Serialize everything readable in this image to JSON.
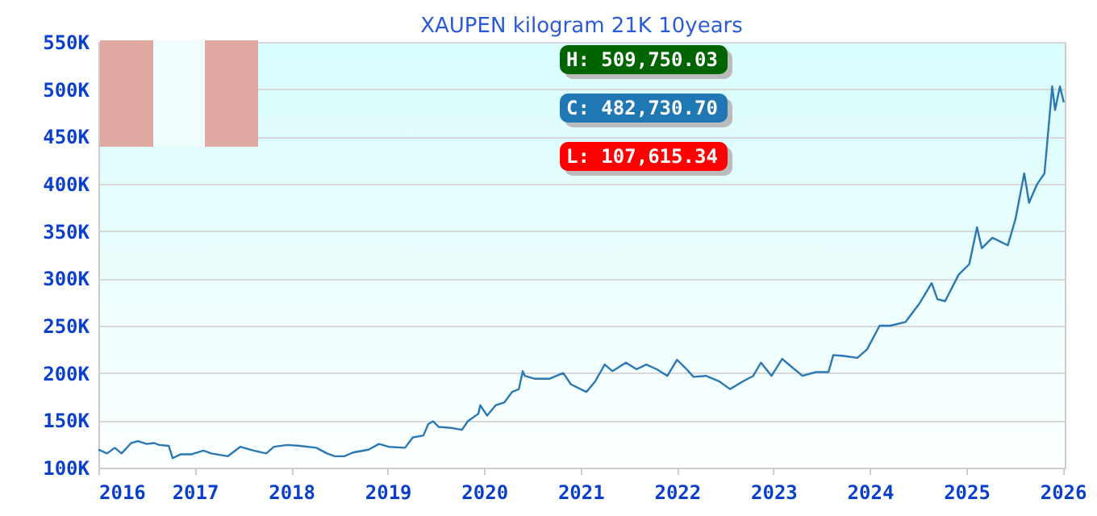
{
  "chart_data": {
    "type": "line",
    "title": "XAUPEN kilogram 21K 10years",
    "annotations": [
      "H: 509,750.03",
      "C: 482,730.70",
      "L: 107,615.34"
    ],
    "x": [
      2016.0,
      2016.09,
      2016.17,
      2016.24,
      2016.34,
      2016.41,
      2016.5,
      2016.58,
      2016.63,
      2016.73,
      2016.77,
      2016.85,
      2016.96,
      2017.09,
      2017.17,
      2017.34,
      2017.47,
      2017.61,
      2017.74,
      2017.82,
      2017.96,
      2018.09,
      2018.26,
      2018.37,
      2018.45,
      2018.55,
      2018.64,
      2018.8,
      2018.91,
      2019.01,
      2019.18,
      2019.26,
      2019.37,
      2019.42,
      2019.47,
      2019.53,
      2019.66,
      2019.77,
      2019.83,
      2019.94,
      2019.96,
      2020.03,
      2020.12,
      2020.21,
      2020.29,
      2020.36,
      2020.4,
      2020.42,
      2020.52,
      2020.68,
      2020.82,
      2020.9,
      2021.06,
      2021.15,
      2021.25,
      2021.33,
      2021.47,
      2021.58,
      2021.68,
      2021.79,
      2021.9,
      2022.0,
      2022.09,
      2022.17,
      2022.3,
      2022.44,
      2022.55,
      2022.68,
      2022.79,
      2022.87,
      2022.98,
      2023.09,
      2023.17,
      2023.3,
      2023.44,
      2023.57,
      2023.62,
      2023.73,
      2023.87,
      2023.97,
      2024.1,
      2024.21,
      2024.37,
      2024.51,
      2024.64,
      2024.7,
      2024.78,
      2024.92,
      2025.03,
      2025.11,
      2025.16,
      2025.27,
      2025.43,
      2025.51,
      2025.6,
      2025.65,
      2025.73,
      2025.81,
      2025.89,
      2025.92,
      2025.97,
      2026.01
    ],
    "series": [
      {
        "color": "#2a78b2",
        "values": [
          119000,
          115000,
          121000,
          115000,
          126000,
          128000,
          125000,
          126000,
          124000,
          123000,
          110000,
          114000,
          114000,
          118000,
          115000,
          112000,
          122000,
          118000,
          115000,
          122000,
          124000,
          123000,
          121000,
          115000,
          112000,
          112000,
          116000,
          119000,
          125000,
          122000,
          121000,
          132000,
          134000,
          146000,
          149000,
          143000,
          142000,
          140000,
          149000,
          157000,
          166000,
          155000,
          166000,
          169000,
          180000,
          183000,
          202000,
          197000,
          194000,
          194000,
          200000,
          188000,
          180000,
          191000,
          209000,
          202000,
          211000,
          204000,
          209000,
          204000,
          197000,
          214000,
          205000,
          196000,
          197000,
          191000,
          183000,
          191000,
          197000,
          211000,
          197000,
          215000,
          208000,
          197000,
          201000,
          201000,
          219000,
          218000,
          216000,
          225000,
          250000,
          250000,
          254000,
          273000,
          295000,
          278000,
          276000,
          304000,
          315000,
          354000,
          332000,
          343000,
          335000,
          363000,
          411000,
          380000,
          399000,
          411000,
          503000,
          478000,
          503000,
          486000
        ]
      }
    ],
    "xlim": [
      2016,
      2026.02
    ],
    "xticks": [
      2016,
      2017,
      2018,
      2019,
      2020,
      2021,
      2022,
      2023,
      2024,
      2025,
      2026
    ],
    "ylim": [
      100000,
      550000
    ],
    "yticks": [
      {
        "value": 100000,
        "label": "100K"
      },
      {
        "value": 150000,
        "label": "150K"
      },
      {
        "value": 200000,
        "label": "200K"
      },
      {
        "value": 250000,
        "label": "250K"
      },
      {
        "value": 300000,
        "label": "300K"
      },
      {
        "value": 350000,
        "label": "350K"
      },
      {
        "value": 400000,
        "label": "400K"
      },
      {
        "value": 450000,
        "label": "450K"
      },
      {
        "value": 500000,
        "label": "500K"
      },
      {
        "value": 550000,
        "label": "550K"
      }
    ],
    "grid": "y"
  }
}
